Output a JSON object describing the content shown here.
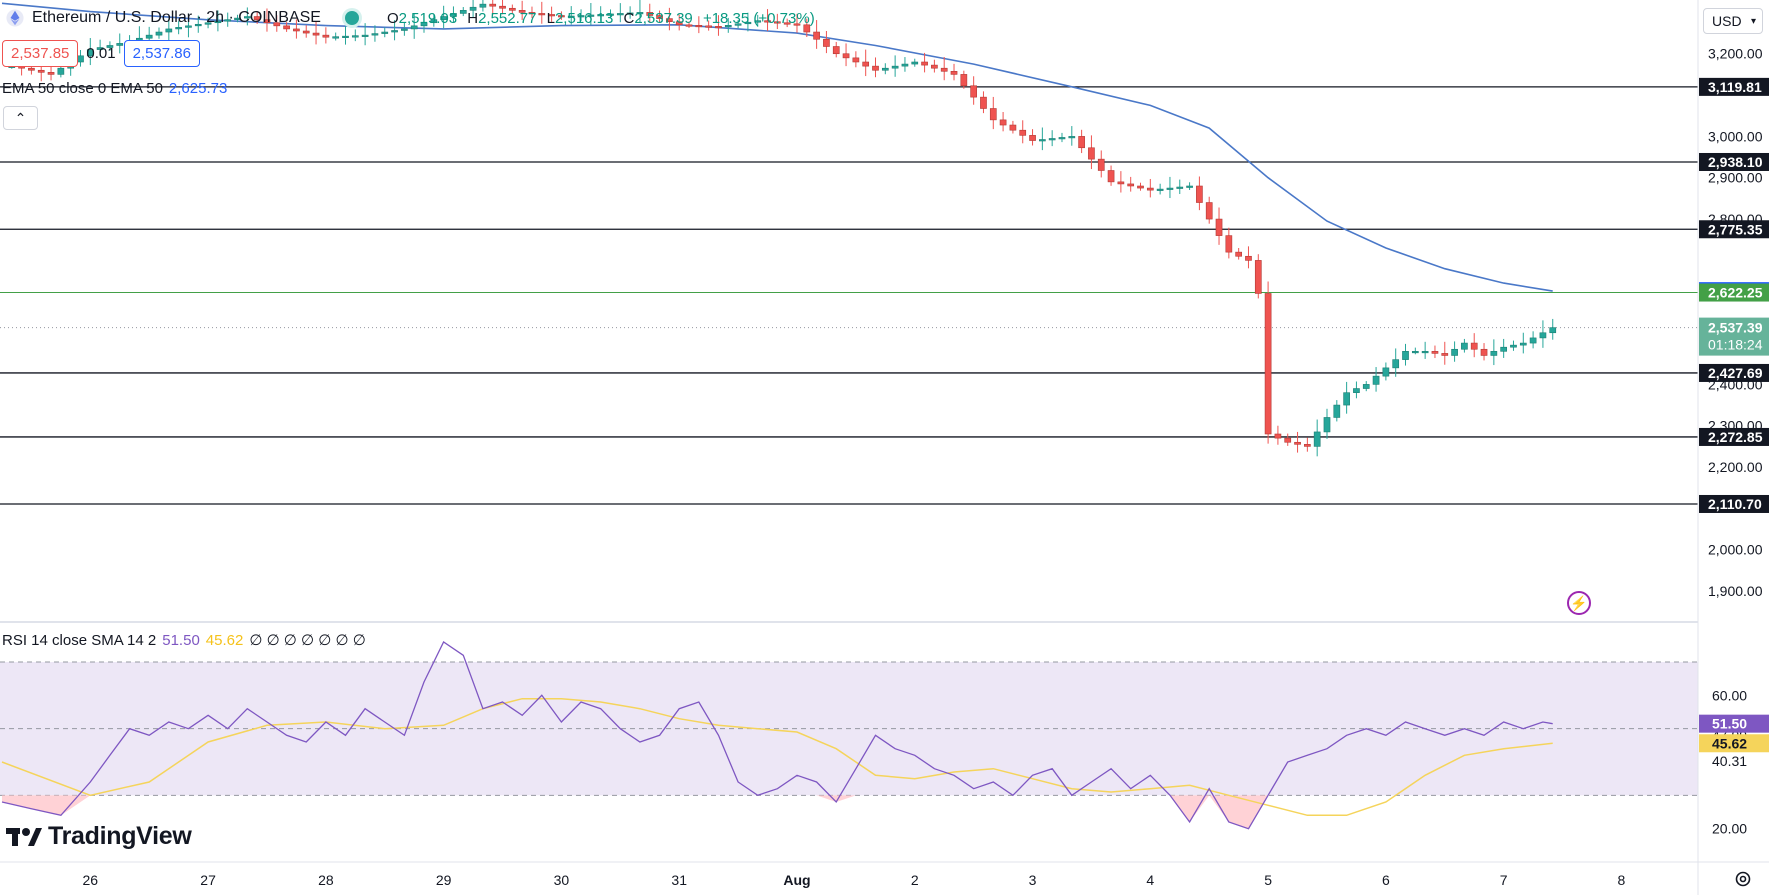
{
  "header": {
    "title": "Ethereum / U.S. Dollar · 2h · COINBASE",
    "ohlc": [
      {
        "k": "O",
        "v": "2,519.03"
      },
      {
        "k": "H",
        "v": "2,552.77"
      },
      {
        "k": "L",
        "v": "2,516.13"
      },
      {
        "k": "C",
        "v": "2,537.39"
      },
      {
        "k": "",
        "v": "+18.35 (+0.73%)"
      }
    ],
    "sell_price": "2,537.85",
    "spread": "0.01",
    "buy_price": "2,537.86",
    "ema_legend": "EMA 50 close 0 EMA 50",
    "ema_value": "2,625.73",
    "collapse_icon": "chevron-up-icon"
  },
  "currency": "USD",
  "rsi_legend": {
    "label": "RSI 14 close SMA 14 2",
    "rsi_value": "51.50",
    "sma_value": "45.62",
    "zeros": "∅ ∅ ∅ ∅ ∅ ∅ ∅"
  },
  "brand": {
    "name": "TradingView"
  },
  "colors": {
    "up": "#26a69a",
    "down": "#ef5350",
    "ema": "#4a78c8",
    "rsi": "#7e57c2",
    "rsi_sma": "#f5d45b",
    "rsi_band": "#ede7f6",
    "support": "#131722",
    "level_green": "#43a047"
  },
  "chart_data": {
    "type": "candlestick",
    "title": "Ethereum / U.S. Dollar · 2h · COINBASE",
    "x_labels": [
      {
        "label": "26",
        "x": 0
      },
      {
        "label": "27",
        "x": 12
      },
      {
        "label": "28",
        "x": 24
      },
      {
        "label": "29",
        "x": 36
      },
      {
        "label": "30",
        "x": 48
      },
      {
        "label": "31",
        "x": 60
      },
      {
        "label": "Aug",
        "x": 72
      },
      {
        "label": "2",
        "x": 84
      },
      {
        "label": "3",
        "x": 96
      },
      {
        "label": "4",
        "x": 108
      },
      {
        "label": "5",
        "x": 120
      },
      {
        "label": "6",
        "x": 132
      },
      {
        "label": "7",
        "x": 144
      },
      {
        "label": "8",
        "x": 156
      }
    ],
    "x_range": [
      -9.2,
      163.8
    ],
    "price_axis": {
      "ylim": [
        1830,
        3330
      ],
      "ticks": [
        "1,900.00",
        "2,000.00",
        "2,200.00",
        "2,300.00",
        "2,400.00",
        "2,800.00",
        "2,900.00",
        "3,000.00",
        "3,200.00"
      ]
    },
    "support_levels": [
      {
        "value": 3119.81,
        "label": "3,119.81"
      },
      {
        "value": 2938.1,
        "label": "2,938.10"
      },
      {
        "value": 2775.35,
        "label": "2,775.35"
      },
      {
        "value": 2427.69,
        "label": "2,427.69"
      },
      {
        "value": 2272.85,
        "label": "2,272.85"
      },
      {
        "value": 2110.7,
        "label": "2,110.70"
      }
    ],
    "ema_level": {
      "value": 2625.73,
      "label": "2,625.73"
    },
    "green_level": {
      "value": 2622.25,
      "label": "2,622.25"
    },
    "current_price": {
      "value": 2537.39,
      "label": "2,537.39",
      "countdown": "01:18:24"
    },
    "ema_x": [
      -9,
      0,
      12,
      24,
      36,
      48,
      60,
      72,
      80,
      90,
      100,
      108,
      114,
      120,
      126,
      132,
      138,
      144,
      149
    ],
    "ema_y": [
      3322,
      3302,
      3282,
      3268,
      3260,
      3268,
      3270,
      3250,
      3220,
      3175,
      3120,
      3075,
      3020,
      2900,
      2795,
      2730,
      2680,
      2645,
      2625.73
    ],
    "close_x": [
      -8,
      -4,
      0,
      4,
      8,
      12,
      16,
      20,
      24,
      28,
      32,
      36,
      40,
      44,
      48,
      52,
      56,
      60,
      64,
      68,
      72,
      76,
      80,
      84,
      88,
      92,
      96,
      100,
      104,
      108,
      112,
      116,
      118,
      119,
      120,
      121,
      122,
      124,
      126,
      128,
      130,
      132,
      134,
      136,
      138,
      140,
      142,
      144,
      146,
      149
    ],
    "close_y": [
      3170,
      3150,
      3210,
      3230,
      3260,
      3275,
      3290,
      3260,
      3240,
      3245,
      3260,
      3290,
      3320,
      3300,
      3290,
      3295,
      3300,
      3270,
      3265,
      3280,
      3270,
      3200,
      3160,
      3180,
      3150,
      3040,
      2990,
      3000,
      2890,
      2870,
      2880,
      2720,
      2700,
      2620,
      2280,
      2270,
      2260,
      2250,
      2320,
      2380,
      2400,
      2440,
      2480,
      2480,
      2470,
      2500,
      2470,
      2490,
      2500,
      2537.39
    ],
    "rsi_axis": {
      "ylim": [
        10,
        82
      ],
      "ticks": [
        "20.00",
        "40.31",
        "47.99",
        "60.00"
      ]
    },
    "rsi_band": [
      30,
      70
    ],
    "rsi_labels": {
      "rsi": "51.50",
      "sma": "45.62"
    },
    "rsi_x": [
      -9,
      -6,
      -3,
      0,
      2,
      4,
      6,
      8,
      10,
      12,
      14,
      16,
      18,
      20,
      22,
      24,
      26,
      28,
      30,
      32,
      34,
      36,
      38,
      40,
      42,
      44,
      46,
      48,
      50,
      52,
      54,
      56,
      58,
      60,
      62,
      64,
      66,
      68,
      70,
      72,
      74,
      76,
      78,
      80,
      82,
      84,
      86,
      88,
      90,
      92,
      94,
      96,
      98,
      100,
      102,
      104,
      106,
      108,
      110,
      112,
      114,
      116,
      118,
      120,
      122,
      124,
      126,
      128,
      130,
      132,
      134,
      136,
      138,
      140,
      142,
      144,
      146,
      148,
      149
    ],
    "rsi_y": [
      28,
      26,
      24,
      34,
      42,
      50,
      48,
      52,
      50,
      54,
      50,
      56,
      52,
      48,
      46,
      52,
      48,
      56,
      52,
      48,
      64,
      76,
      72,
      56,
      58,
      54,
      60,
      52,
      58,
      56,
      50,
      46,
      48,
      56,
      58,
      48,
      34,
      30,
      32,
      36,
      34,
      28,
      38,
      48,
      44,
      42,
      38,
      36,
      32,
      34,
      30,
      36,
      38,
      30,
      34,
      38,
      32,
      36,
      30,
      22,
      32,
      22,
      20,
      30,
      40,
      42,
      44,
      48,
      50,
      48,
      52,
      50,
      48,
      50,
      48,
      52,
      50,
      52,
      51.5
    ],
    "sma_x": [
      -9,
      0,
      6,
      12,
      18,
      24,
      30,
      36,
      40,
      44,
      48,
      52,
      56,
      60,
      64,
      68,
      72,
      76,
      80,
      84,
      88,
      92,
      96,
      100,
      104,
      108,
      112,
      116,
      120,
      124,
      128,
      132,
      136,
      140,
      144,
      149
    ],
    "sma_y": [
      40,
      30,
      34,
      46,
      51,
      52,
      50,
      51,
      56,
      59,
      59,
      58,
      56,
      53,
      51,
      50,
      49,
      44,
      36,
      35,
      37,
      38,
      35,
      32,
      31,
      32,
      33,
      30,
      27,
      24,
      24,
      28,
      36,
      42,
      44,
      45.62
    ]
  }
}
